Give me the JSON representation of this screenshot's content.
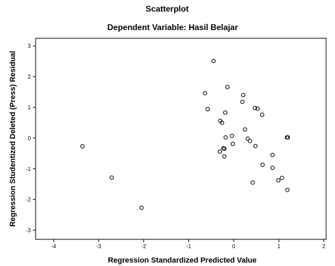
{
  "chart_data": {
    "type": "scatter",
    "title": "Scatterplot",
    "subtitle": "Dependent Variable: Hasil Belajar",
    "xlabel": "Regression Standardized Predicted Value",
    "ylabel": "Regression Studentized Deleted (Press) Residual",
    "xlim": [
      -4.4,
      2.05
    ],
    "ylim": [
      -3.3,
      3.25
    ],
    "xticks": [
      -4,
      -3,
      -2,
      -1,
      0,
      1,
      2
    ],
    "yticks": [
      -3,
      -2,
      -1,
      0,
      1,
      2,
      3
    ],
    "grid": false,
    "colors": {
      "frame": "#000000",
      "marker": "#000000",
      "background": "#ffffff"
    },
    "points": [
      {
        "x": -3.36,
        "y": -0.27
      },
      {
        "x": -2.71,
        "y": -1.29
      },
      {
        "x": -2.05,
        "y": -2.27
      },
      {
        "x": -0.45,
        "y": 2.51
      },
      {
        "x": -0.64,
        "y": 1.46
      },
      {
        "x": -0.58,
        "y": 0.94
      },
      {
        "x": -0.14,
        "y": 1.66
      },
      {
        "x": 0.21,
        "y": 1.4
      },
      {
        "x": 0.19,
        "y": 1.18
      },
      {
        "x": -0.19,
        "y": 0.83
      },
      {
        "x": 0.47,
        "y": 0.98
      },
      {
        "x": 0.53,
        "y": 0.96
      },
      {
        "x": 0.63,
        "y": 0.76
      },
      {
        "x": -0.3,
        "y": 0.56
      },
      {
        "x": -0.26,
        "y": 0.5
      },
      {
        "x": 0.25,
        "y": 0.28
      },
      {
        "x": -0.18,
        "y": 0.02
      },
      {
        "x": -0.04,
        "y": 0.07
      },
      {
        "x": 0.31,
        "y": -0.02
      },
      {
        "x": 0.36,
        "y": -0.1
      },
      {
        "x": 1.18,
        "y": 0.02
      },
      {
        "x": 1.2,
        "y": 0.02
      },
      {
        "x": -0.02,
        "y": -0.19
      },
      {
        "x": 0.48,
        "y": -0.26
      },
      {
        "x": -0.23,
        "y": -0.33
      },
      {
        "x": -0.21,
        "y": -0.35
      },
      {
        "x": -0.31,
        "y": -0.44
      },
      {
        "x": -0.21,
        "y": -0.6
      },
      {
        "x": 0.86,
        "y": -0.55
      },
      {
        "x": 0.64,
        "y": -0.87
      },
      {
        "x": 0.86,
        "y": -0.97
      },
      {
        "x": 0.99,
        "y": -1.38
      },
      {
        "x": 1.07,
        "y": -1.3
      },
      {
        "x": 0.42,
        "y": -1.45
      },
      {
        "x": 1.19,
        "y": -1.69
      }
    ]
  }
}
